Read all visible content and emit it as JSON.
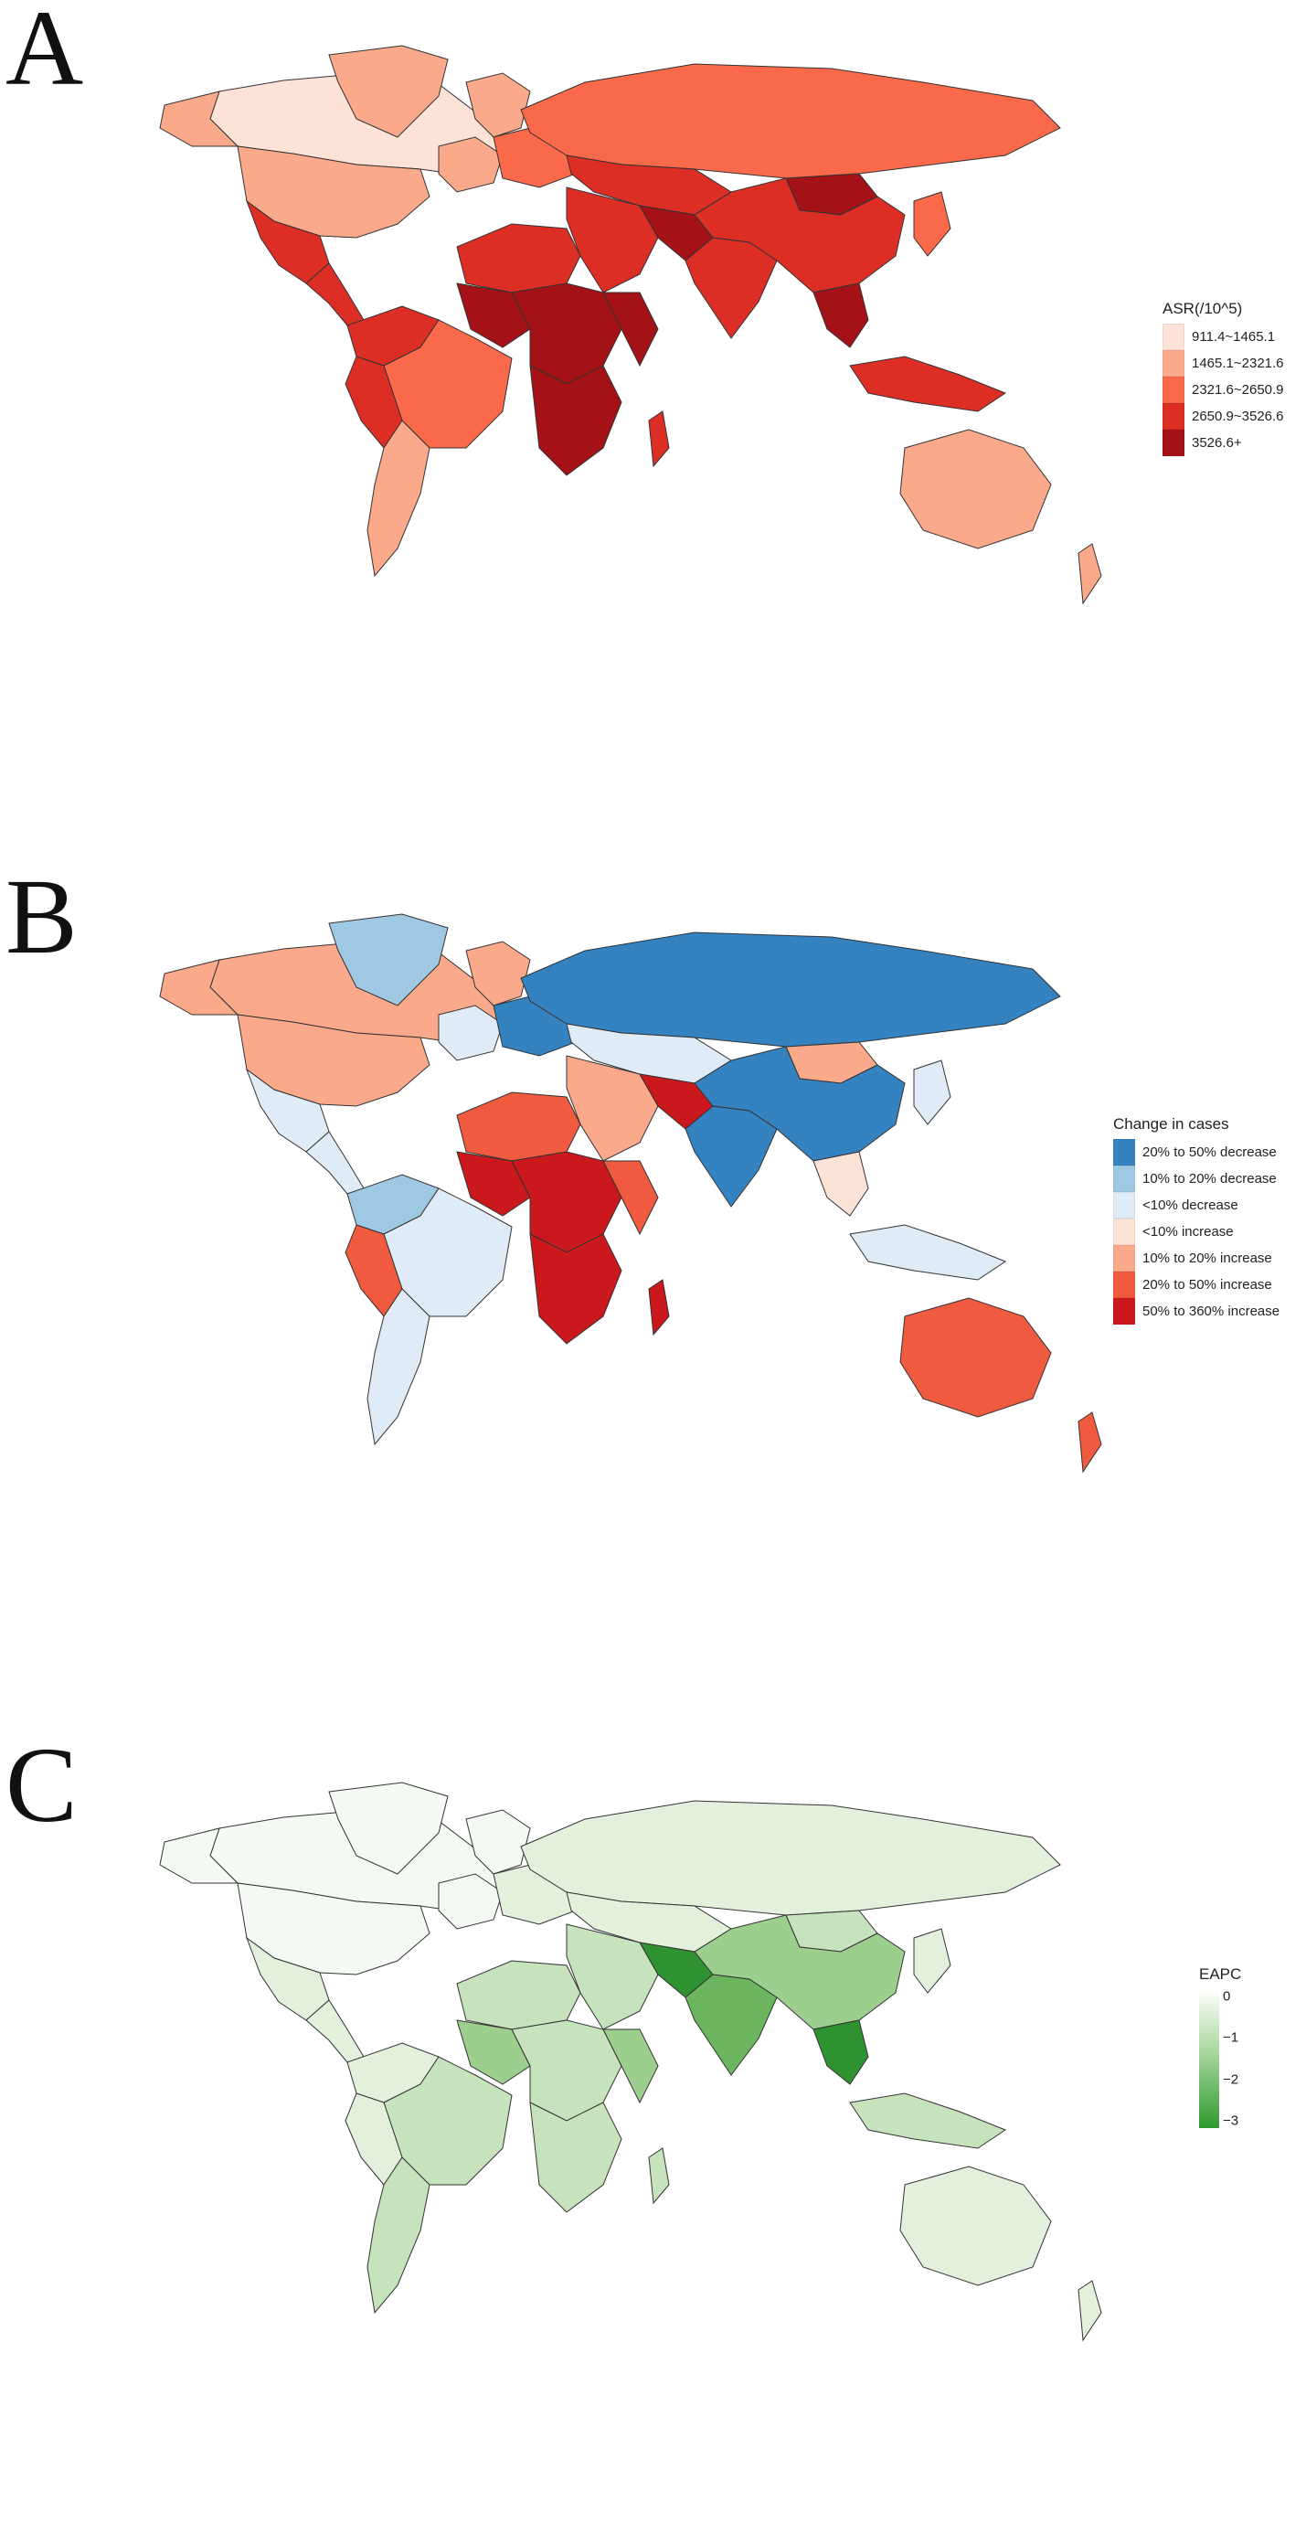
{
  "panels": [
    {
      "letter": "A",
      "colors": [
        "#fde2d8",
        "#fba98b",
        "#f9694a",
        "#dd2e26",
        "#a41117"
      ],
      "legend": {
        "title": "ASR(/10^5)",
        "items": [
          {
            "label": "911.4~1465.1",
            "color": "#fde2d8"
          },
          {
            "label": "1465.1~2321.6",
            "color": "#fba98b"
          },
          {
            "label": "2321.6~2650.9",
            "color": "#f9694a"
          },
          {
            "label": "2650.9~3526.6",
            "color": "#dd2e26"
          },
          {
            "label": "3526.6+",
            "color": "#a41117"
          }
        ]
      }
    },
    {
      "letter": "B",
      "colors": [
        "#3582c0",
        "#9fc8e3",
        "#dfebf6",
        "#fde2d8",
        "#fba98b",
        "#f05a3f",
        "#cb181d"
      ],
      "legend": {
        "title": "Change in cases",
        "items": [
          {
            "label": "20% to 50% decrease",
            "color": "#3582c0"
          },
          {
            "label": "10% to 20% decrease",
            "color": "#9fc8e3"
          },
          {
            "label": "<10% decrease",
            "color": "#dfebf6"
          },
          {
            "label": "<10% increase",
            "color": "#fde2d8"
          },
          {
            "label": "10% to 20% increase",
            "color": "#fba98b"
          },
          {
            "label": "20% to 50% increase",
            "color": "#f05a3f"
          },
          {
            "label": "50% to 360% increase",
            "color": "#cb181d"
          }
        ]
      }
    },
    {
      "letter": "C",
      "colors": [
        "#f5f9f3",
        "#e2f0dc",
        "#c7e3bd",
        "#9ccf8e",
        "#6ab55e",
        "#2f9231"
      ],
      "legend": {
        "title": "EAPC",
        "ticks": [
          "0",
          "−1",
          "−2",
          "−3"
        ],
        "gradient": [
          "#ffffff",
          "#a9d79f",
          "#2e9a30"
        ]
      }
    }
  ]
}
